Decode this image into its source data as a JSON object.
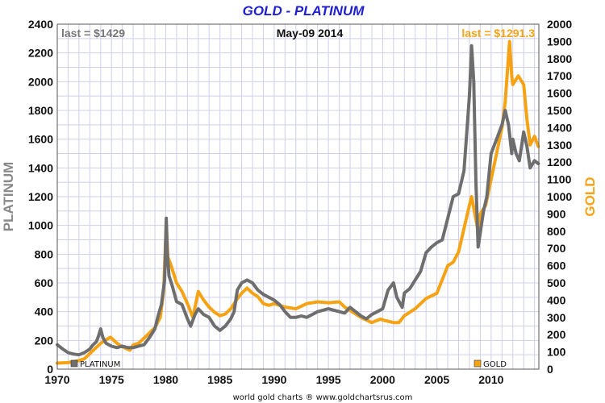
{
  "colors": {
    "platinum": "#6e6e6e",
    "gold": "#f5a314",
    "title": "#1f1fd2",
    "grid": "#cfcfec"
  },
  "chart_data": {
    "type": "line",
    "title": "GOLD - PLATINUM",
    "date_label": "May-09  2014",
    "footer": "world gold charts ® www.goldchartsrus.com",
    "grid": true,
    "x_ticks": [
      "1970",
      "1975",
      "1980",
      "1985",
      "1990",
      "1995",
      "2000",
      "2005",
      "2010"
    ],
    "xlim": [
      1970,
      2014.4
    ],
    "left_axis": {
      "label": "PLATINUM",
      "ylim": [
        0,
        2400
      ],
      "ticks": [
        "0",
        "200",
        "400",
        "600",
        "800",
        "1000",
        "1200",
        "1400",
        "1600",
        "1800",
        "2000",
        "2200",
        "2400"
      ]
    },
    "right_axis": {
      "label": "GOLD",
      "ylim": [
        0,
        2000
      ],
      "ticks": [
        "0",
        "100",
        "200",
        "300",
        "400",
        "500",
        "600",
        "700",
        "800",
        "900",
        "1000",
        "1100",
        "1200",
        "1300",
        "1400",
        "1500",
        "1600",
        "1700",
        "1800",
        "1900",
        "2000"
      ]
    },
    "annotations": {
      "platinum_last": "last = $1429",
      "gold_last": "last = $1291.3"
    },
    "legend": [
      {
        "key": "platinum",
        "label": "PLATINUM",
        "position": "bottom-left"
      },
      {
        "key": "gold",
        "label": "GOLD",
        "position": "bottom-right"
      }
    ],
    "series": [
      {
        "name": "PLATINUM",
        "axis": "left",
        "x": [
          1970,
          1970.5,
          1971,
          1971.5,
          1972,
          1972.5,
          1973,
          1973.3,
          1973.6,
          1973.8,
          1974,
          1974.2,
          1974.5,
          1975,
          1975.5,
          1976,
          1976.5,
          1977,
          1977.5,
          1978,
          1978.5,
          1979,
          1979.3,
          1979.6,
          1979.9,
          1980.05,
          1980.15,
          1980.3,
          1980.6,
          1981,
          1981.5,
          1982,
          1982.3,
          1982.7,
          1983,
          1983.5,
          1984,
          1984.5,
          1985,
          1985.5,
          1986,
          1986.3,
          1986.6,
          1987,
          1987.5,
          1988,
          1988.5,
          1989,
          1989.5,
          1990,
          1990.5,
          1991,
          1991.5,
          1992,
          1992.5,
          1993,
          1993.5,
          1994,
          1995,
          1996,
          1996.5,
          1997,
          1997.5,
          1998,
          1998.5,
          1999,
          1999.5,
          2000,
          2000.5,
          2001,
          2001.3,
          2001.8,
          2002,
          2002.5,
          2003,
          2003.5,
          2004,
          2004.5,
          2005,
          2005.5,
          2006,
          2006.5,
          2007,
          2007.5,
          2008,
          2008.2,
          2008.4,
          2008.6,
          2008.8,
          2009,
          2009.3,
          2009.6,
          2010,
          2010.5,
          2011,
          2011.3,
          2011.6,
          2011.9,
          2012,
          2012.3,
          2012.6,
          2013,
          2013.3,
          2013.6,
          2014,
          2014.35
        ],
        "values": [
          170,
          140,
          115,
          105,
          100,
          115,
          140,
          170,
          190,
          230,
          280,
          220,
          180,
          160,
          150,
          160,
          150,
          150,
          160,
          170,
          220,
          280,
          370,
          450,
          620,
          1050,
          800,
          650,
          580,
          470,
          450,
          350,
          300,
          380,
          420,
          380,
          360,
          300,
          270,
          300,
          350,
          400,
          550,
          600,
          620,
          600,
          550,
          520,
          500,
          480,
          450,
          400,
          360,
          360,
          370,
          360,
          380,
          400,
          420,
          400,
          390,
          430,
          400,
          370,
          350,
          380,
          400,
          420,
          550,
          600,
          500,
          430,
          530,
          560,
          620,
          680,
          810,
          850,
          880,
          900,
          1050,
          1200,
          1220,
          1380,
          1900,
          2250,
          2000,
          1300,
          850,
          950,
          1100,
          1200,
          1500,
          1600,
          1700,
          1800,
          1700,
          1500,
          1600,
          1500,
          1450,
          1650,
          1550,
          1400,
          1450,
          1430
        ]
      },
      {
        "name": "GOLD",
        "axis": "right",
        "x": [
          1970,
          1971,
          1972,
          1972.5,
          1973,
          1973.5,
          1974,
          1974.5,
          1974.9,
          1975.5,
          1976,
          1976.7,
          1977,
          1977.5,
          1978,
          1978.5,
          1979,
          1979.5,
          1979.8,
          1980.05,
          1980.2,
          1980.5,
          1981,
          1981.5,
          1982,
          1982.5,
          1983,
          1983.5,
          1984,
          1984.5,
          1985,
          1985.5,
          1986,
          1986.5,
          1987,
          1987.5,
          1988,
          1988.5,
          1989,
          1989.5,
          1990,
          1991,
          1992,
          1993,
          1994,
          1995,
          1996,
          1996.5,
          1997,
          1998,
          1999,
          1999.8,
          2000,
          2001,
          2001.5,
          2002,
          2003,
          2004,
          2005,
          2006,
          2006.5,
          2007,
          2008,
          2008.2,
          2008.8,
          2009,
          2009.5,
          2010,
          2010.5,
          2011,
          2011.3,
          2011.7,
          2011.9,
          2012,
          2012.5,
          2013,
          2013.3,
          2013.6,
          2014,
          2014.35
        ],
        "values": [
          35,
          38,
          50,
          60,
          90,
          120,
          150,
          170,
          185,
          150,
          130,
          110,
          140,
          150,
          180,
          210,
          240,
          300,
          450,
          840,
          650,
          600,
          500,
          450,
          380,
          300,
          450,
          400,
          360,
          330,
          310,
          320,
          350,
          400,
          440,
          470,
          440,
          420,
          380,
          370,
          380,
          360,
          350,
          380,
          390,
          385,
          390,
          360,
          340,
          300,
          270,
          290,
          285,
          270,
          270,
          310,
          350,
          410,
          440,
          600,
          620,
          680,
          950,
          1000,
          800,
          900,
          950,
          1100,
          1250,
          1400,
          1550,
          1900,
          1700,
          1650,
          1700,
          1650,
          1450,
          1300,
          1350,
          1291
        ]
      }
    ]
  }
}
